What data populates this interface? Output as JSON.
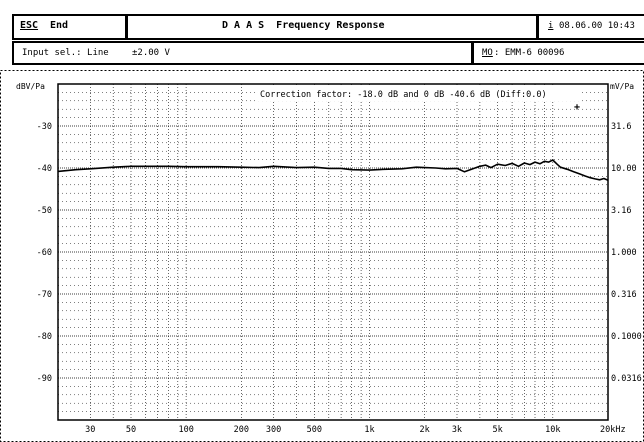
{
  "header": {
    "esc_key": "ESC",
    "esc_label": "End",
    "title": "D A A S  Frequency Response",
    "info_key": "i",
    "datetime": "08.06.00 10:43",
    "input_label": "Input sel.: Line",
    "input_level": "±2.00 V",
    "mic_key": "MO",
    "mic_value": ": EMM-6 00096"
  },
  "chart_data": {
    "type": "line",
    "ylabel_left": "dBV/Pa",
    "ylabel_right": "mV/Pa",
    "xlabel": "",
    "x_scale": "log",
    "xlim": [
      20,
      20000
    ],
    "ylim": [
      -100,
      -20
    ],
    "grid": true,
    "y_ticks_left": [
      "-30",
      "-40",
      "-50",
      "-60",
      "-70",
      "-80",
      "-90"
    ],
    "y_ticks_right": [
      "31.6",
      "10.00",
      "3.16",
      "1.000",
      "0.316",
      "0.1000",
      "0.0316"
    ],
    "x_tick_labels": [
      "30",
      "50",
      "100",
      "200",
      "300",
      "500",
      "1k",
      "2k",
      "3k",
      "5k",
      "10k",
      "20kHz"
    ],
    "annotation": "Correction factor: -18.0 dB and 0 dB -40.6 dB (Diff:0.0)",
    "series": [
      {
        "x": [
          20,
          25,
          30,
          40,
          50,
          60,
          80,
          100,
          150,
          200,
          250,
          300,
          400,
          500,
          600,
          700,
          800,
          1000,
          1200,
          1500,
          1800,
          2000,
          2300,
          2600,
          3000,
          3300,
          3600,
          4000,
          4300,
          4600,
          5000,
          5500,
          6000,
          6500,
          7000,
          7500,
          8000,
          8500,
          9000,
          9500,
          10000,
          10500,
          11000,
          12000,
          13000,
          14000,
          15000,
          16000,
          17000,
          18000,
          19000,
          20000
        ],
        "y": [
          -40.8,
          -40.4,
          -40.2,
          -39.8,
          -39.6,
          -39.6,
          -39.6,
          -39.7,
          -39.7,
          -39.8,
          -39.9,
          -39.6,
          -39.9,
          -39.8,
          -40.1,
          -40.1,
          -40.4,
          -40.5,
          -40.3,
          -40.2,
          -39.8,
          -39.9,
          -40.0,
          -40.2,
          -40.1,
          -40.9,
          -40.3,
          -39.6,
          -39.3,
          -39.9,
          -39.1,
          -39.4,
          -38.9,
          -39.6,
          -38.8,
          -39.2,
          -38.6,
          -39.0,
          -38.4,
          -38.6,
          -38.1,
          -39.0,
          -39.8,
          -40.3,
          -40.9,
          -41.4,
          -41.9,
          -42.3,
          -42.6,
          -42.8,
          -42.5,
          -42.9
        ]
      }
    ]
  }
}
